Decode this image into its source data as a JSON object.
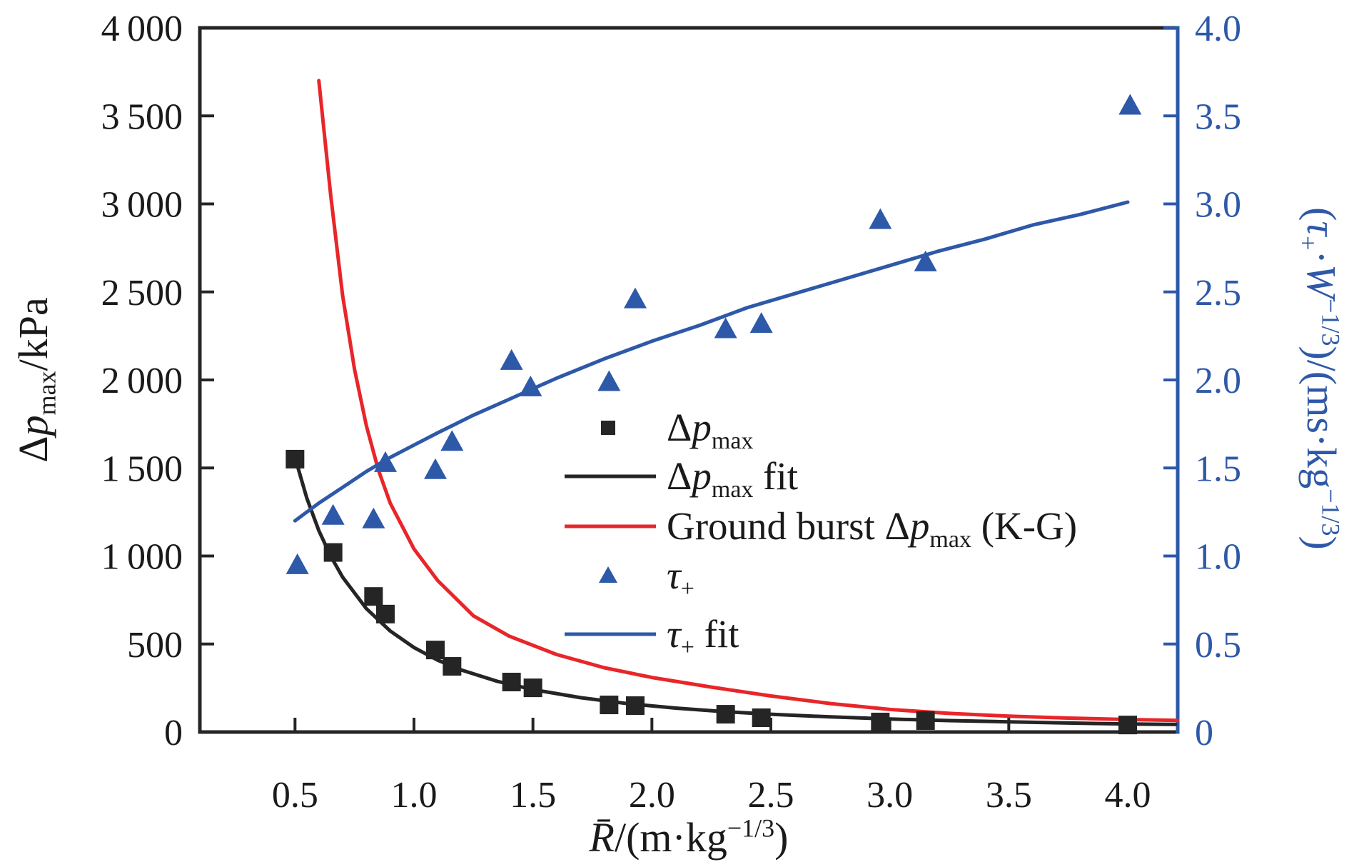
{
  "page": {
    "background": "#ffffff"
  },
  "chart_data": {
    "type": "scatter",
    "title": "",
    "colors": {
      "black": "#252525",
      "red": "#e8262a",
      "blue": "#2e58a8",
      "tick_text": "#1a1a1a"
    },
    "axes": {
      "x": {
        "label": "~{R̄}/(m·kg^{−1/3})",
        "min": 0.1,
        "max": 4.21,
        "ticks": [
          0.5,
          1.0,
          1.5,
          2.0,
          2.5,
          3.0,
          3.5,
          4.0
        ],
        "tick_labels": [
          "0.5",
          "1.0",
          "1.5",
          "2.0",
          "2.5",
          "3.0",
          "3.5",
          "4.0"
        ],
        "color": "#1a1a1a"
      },
      "y_left": {
        "label": "Δ~{p}_{max}/kPa",
        "min": 0,
        "max": 4000,
        "ticks": [
          0,
          500,
          1000,
          1500,
          2000,
          2500,
          3000,
          3500,
          4000
        ],
        "tick_labels": [
          "0",
          "500",
          "1 000",
          "1 500",
          "2 000",
          "2 500",
          "3 000",
          "3 500",
          "4 000"
        ],
        "color": "#1a1a1a"
      },
      "y_right": {
        "label": "(~{τ}_{+}·~{W}^{−1/3})/(ms·kg^{−1/3})",
        "min": 0,
        "max": 4.0,
        "ticks": [
          0,
          0.5,
          1.0,
          1.5,
          2.0,
          2.5,
          3.0,
          3.5,
          4.0
        ],
        "tick_labels": [
          "0",
          "0.5",
          "1.0",
          "1.5",
          "2.0",
          "2.5",
          "3.0",
          "3.5",
          "4.0"
        ],
        "color": "#2e58a8"
      },
      "grid": false
    },
    "series": [
      {
        "id": "kg-curve",
        "label": "Ground burst Δ~{p}_{max} (K-G)",
        "axis": "left",
        "kind": "line",
        "color": "#e8262a",
        "points": [
          [
            0.6,
            3700
          ],
          [
            0.65,
            3050
          ],
          [
            0.7,
            2480
          ],
          [
            0.75,
            2060
          ],
          [
            0.8,
            1740
          ],
          [
            0.85,
            1490
          ],
          [
            0.9,
            1300
          ],
          [
            1.0,
            1040
          ],
          [
            1.1,
            860
          ],
          [
            1.25,
            660
          ],
          [
            1.4,
            545
          ],
          [
            1.6,
            440
          ],
          [
            1.8,
            365
          ],
          [
            2.0,
            310
          ],
          [
            2.25,
            255
          ],
          [
            2.5,
            205
          ],
          [
            2.75,
            162
          ],
          [
            3.0,
            128
          ],
          [
            3.25,
            106
          ],
          [
            3.5,
            90
          ],
          [
            3.75,
            79
          ],
          [
            4.0,
            71
          ],
          [
            4.21,
            66
          ]
        ]
      },
      {
        "id": "dpmax-fit",
        "label": "Δ~{p}_{max} fit",
        "axis": "left",
        "kind": "line",
        "color": "#252525",
        "points": [
          [
            0.5,
            1560
          ],
          [
            0.55,
            1327
          ],
          [
            0.6,
            1144
          ],
          [
            0.65,
            999
          ],
          [
            0.7,
            880
          ],
          [
            0.8,
            701
          ],
          [
            0.9,
            574
          ],
          [
            1.0,
            480
          ],
          [
            1.1,
            408
          ],
          [
            1.2,
            352
          ],
          [
            1.35,
            288
          ],
          [
            1.5,
            241
          ],
          [
            1.7,
            195
          ],
          [
            1.9,
            161
          ],
          [
            2.1,
            136
          ],
          [
            2.3,
            116
          ],
          [
            2.5,
            101
          ],
          [
            2.75,
            86
          ],
          [
            3.0,
            74
          ],
          [
            3.25,
            65
          ],
          [
            3.5,
            58
          ],
          [
            3.75,
            51
          ],
          [
            4.0,
            46
          ],
          [
            4.2,
            43
          ]
        ]
      },
      {
        "id": "tau-fit",
        "label": "~{τ}_{+} fit",
        "axis": "right",
        "kind": "line",
        "color": "#2e58a8",
        "points": [
          [
            0.5,
            1.2
          ],
          [
            0.6,
            1.3
          ],
          [
            0.7,
            1.39
          ],
          [
            0.8,
            1.48
          ],
          [
            0.9,
            1.56
          ],
          [
            1.0,
            1.63
          ],
          [
            1.1,
            1.7
          ],
          [
            1.25,
            1.8
          ],
          [
            1.4,
            1.89
          ],
          [
            1.6,
            2.01
          ],
          [
            1.8,
            2.12
          ],
          [
            2.0,
            2.22
          ],
          [
            2.2,
            2.31
          ],
          [
            2.4,
            2.41
          ],
          [
            2.6,
            2.49
          ],
          [
            2.8,
            2.57
          ],
          [
            3.0,
            2.65
          ],
          [
            3.2,
            2.73
          ],
          [
            3.4,
            2.8
          ],
          [
            3.6,
            2.88
          ],
          [
            3.8,
            2.94
          ],
          [
            4.0,
            3.01
          ]
        ]
      },
      {
        "id": "dpmax-points",
        "label": "Δ~{p}_{max}",
        "axis": "left",
        "kind": "scatter",
        "marker": "square",
        "color": "#252525",
        "points": [
          [
            0.5,
            1550
          ],
          [
            0.66,
            1020
          ],
          [
            0.83,
            770
          ],
          [
            0.88,
            670
          ],
          [
            1.09,
            466
          ],
          [
            1.16,
            373
          ],
          [
            1.41,
            284
          ],
          [
            1.5,
            251
          ],
          [
            1.82,
            154
          ],
          [
            1.93,
            150
          ],
          [
            2.31,
            101
          ],
          [
            2.46,
            81
          ],
          [
            2.96,
            57
          ],
          [
            3.15,
            65
          ],
          [
            4.0,
            40
          ]
        ]
      },
      {
        "id": "tau-points",
        "label": "~{τ}_{+}",
        "axis": "right",
        "kind": "scatter",
        "marker": "triangle",
        "color": "#2e58a8",
        "points": [
          [
            0.51,
            0.95
          ],
          [
            0.66,
            1.23
          ],
          [
            0.83,
            1.21
          ],
          [
            0.88,
            1.53
          ],
          [
            1.09,
            1.49
          ],
          [
            1.16,
            1.65
          ],
          [
            1.41,
            2.11
          ],
          [
            1.49,
            1.96
          ],
          [
            1.82,
            1.99
          ],
          [
            1.93,
            2.46
          ],
          [
            2.31,
            2.29
          ],
          [
            2.46,
            2.32
          ],
          [
            2.96,
            2.91
          ],
          [
            3.15,
            2.67
          ],
          [
            4.01,
            3.56
          ]
        ]
      }
    ],
    "legend": {
      "position": "inside-center-right",
      "items": [
        {
          "swatch": "square",
          "color": "#252525",
          "label": "Δ~{p}_{max}"
        },
        {
          "swatch": "line",
          "color": "#252525",
          "label": "Δ~{p}_{max} fit"
        },
        {
          "swatch": "line",
          "color": "#e8262a",
          "label": "Ground burst Δ~{p}_{max} (K-G)"
        },
        {
          "swatch": "triangle",
          "color": "#2e58a8",
          "label": "~{τ}_{+}"
        },
        {
          "swatch": "line",
          "color": "#2e58a8",
          "label": "~{τ}_{+} fit"
        }
      ]
    }
  }
}
